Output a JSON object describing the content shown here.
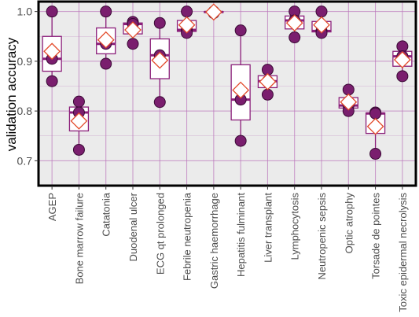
{
  "chart_data": {
    "type": "box",
    "title": "",
    "xlabel": "",
    "ylabel": "validation accuracy",
    "ylim": [
      0.65,
      1.02
    ],
    "yticks": [
      0.7,
      0.8,
      0.9,
      1.0
    ],
    "ytick_labels": [
      "0.7",
      "0.8",
      "0.9",
      "1.0"
    ],
    "grid": true,
    "legend": "none",
    "colors": {
      "panel_bg": "#ebebeb",
      "grid": "#bb77bb",
      "box_border": "#8b1f7a",
      "box_fill": "#ffffff",
      "point_fill": "#7a1e6e",
      "point_stroke": "#3a0a35",
      "mean_marker_fill": "#ffffff",
      "mean_marker_stroke": "#e34a2a",
      "frame": "#000000"
    },
    "categories": [
      "AGEP",
      "Bone marrow failure",
      "Catatonia",
      "Duodenal ulcer",
      "ECG qt prolonged",
      "Febrile neutropenia",
      "Gastric haemorrhage",
      "Hepatitis fulminant",
      "Liver transplant",
      "Lymphocytosis",
      "Neutropenic sepsis",
      "Optic atrophy",
      "Torsade de pointes",
      "Toxic epidermal necrolysis"
    ],
    "boxes": [
      {
        "min": 0.86,
        "q1": 0.88,
        "median": 0.905,
        "q3": 0.95,
        "max": 1.0
      },
      {
        "min": 0.722,
        "q1": 0.76,
        "median": 0.797,
        "q3": 0.808,
        "max": 0.819
      },
      {
        "min": 0.895,
        "q1": 0.915,
        "median": 0.935,
        "q3": 0.967,
        "max": 1.0
      },
      {
        "min": 0.935,
        "q1": 0.955,
        "median": 0.975,
        "q3": 0.977,
        "max": 0.979
      },
      {
        "min": 0.818,
        "q1": 0.865,
        "median": 0.912,
        "q3": 0.945,
        "max": 0.977
      },
      {
        "min": 0.957,
        "q1": 0.96,
        "median": 0.963,
        "q3": 0.982,
        "max": 1.0
      },
      {
        "min": 0.997,
        "q1": 0.998,
        "median": 0.999,
        "q3": 1.0,
        "max": 1.0
      },
      {
        "min": 0.74,
        "q1": 0.782,
        "median": 0.823,
        "q3": 0.893,
        "max": 0.962
      },
      {
        "min": 0.833,
        "q1": 0.847,
        "median": 0.86,
        "q3": 0.871,
        "max": 0.883
      },
      {
        "min": 0.948,
        "q1": 0.965,
        "median": 0.982,
        "q3": 0.991,
        "max": 1.0
      },
      {
        "min": 0.957,
        "q1": 0.959,
        "median": 0.961,
        "q3": 0.98,
        "max": 1.0
      },
      {
        "min": 0.8,
        "q1": 0.806,
        "median": 0.811,
        "q3": 0.827,
        "max": 0.843
      },
      {
        "min": 0.714,
        "q1": 0.755,
        "median": 0.795,
        "q3": 0.796,
        "max": 0.797
      },
      {
        "min": 0.87,
        "q1": 0.89,
        "median": 0.91,
        "q3": 0.92,
        "max": 0.93
      }
    ],
    "points": [
      [
        1.0,
        0.905,
        0.86
      ],
      [
        0.819,
        0.797,
        0.722
      ],
      [
        1.0,
        0.935,
        0.895
      ],
      [
        0.979,
        0.975,
        0.935
      ],
      [
        0.977,
        0.912,
        0.818
      ],
      [
        1.0,
        0.963,
        0.957
      ],
      [
        1.0,
        0.999,
        0.997
      ],
      [
        0.962,
        0.823,
        0.74
      ],
      [
        0.883,
        0.86,
        0.833
      ],
      [
        1.0,
        0.982,
        0.948
      ],
      [
        1.0,
        0.961,
        0.957
      ],
      [
        0.843,
        0.811,
        0.8
      ],
      [
        0.797,
        0.795,
        0.714
      ],
      [
        0.93,
        0.91,
        0.87
      ]
    ],
    "means": [
      0.92,
      0.78,
      0.943,
      0.963,
      0.902,
      0.973,
      0.999,
      0.842,
      0.859,
      0.977,
      0.973,
      0.818,
      0.769,
      0.903
    ]
  }
}
